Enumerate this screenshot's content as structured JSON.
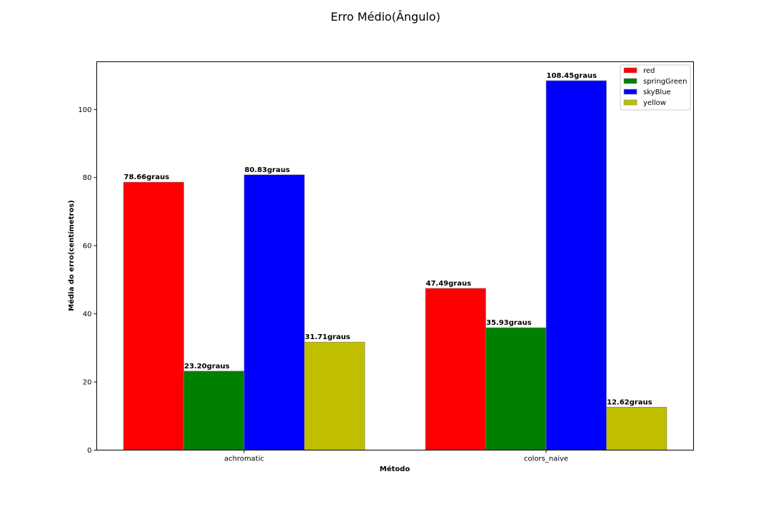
{
  "chart_data": {
    "type": "bar",
    "title": "Erro Médio(Ângulo)",
    "xlabel": "Método",
    "ylabel": "Média do erro(centímetros)",
    "categories": [
      "achromatic",
      "colors_naive"
    ],
    "ylim": [
      0,
      114
    ],
    "yticks": [
      0,
      20,
      40,
      60,
      80,
      100
    ],
    "grid": false,
    "legend_position": "top-right",
    "series": [
      {
        "name": "red",
        "color": "#ff0000",
        "values": [
          78.66,
          47.49
        ],
        "labels": [
          "78.66graus",
          "47.49graus"
        ]
      },
      {
        "name": "springGreen",
        "color": "#008000",
        "values": [
          23.2,
          35.93
        ],
        "labels": [
          "23.20graus",
          "35.93graus"
        ]
      },
      {
        "name": "skyBlue",
        "color": "#0000ff",
        "values": [
          80.83,
          108.45
        ],
        "labels": [
          "80.83graus",
          "108.45graus"
        ]
      },
      {
        "name": "yellow",
        "color": "#bfbf00",
        "values": [
          31.71,
          12.62
        ],
        "labels": [
          "31.71graus",
          "12.62graus"
        ]
      }
    ]
  }
}
